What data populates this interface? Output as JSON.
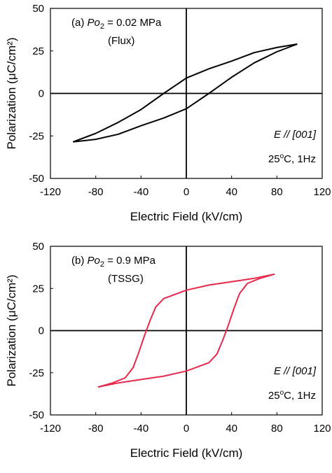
{
  "chart_data": [
    {
      "type": "line",
      "panel_label": "(a)",
      "annotations": {
        "condition_prefix": "(a) ",
        "condition_var": "Po",
        "condition_sub": "2",
        "condition_value": " = 0.02 MPa",
        "method": "(Flux)",
        "field_direction": "E // [001]",
        "temp_prefix": "25",
        "temp_sup": "o",
        "temp_suffix": "C, 1Hz"
      },
      "xlabel": "Electric Field (kV/cm)",
      "ylabel": "Polarization (μC/cm²)",
      "xlim": [
        -120,
        120
      ],
      "ylim": [
        -50,
        50
      ],
      "xticks": [
        "-120",
        "-80",
        "-40",
        "0",
        "40",
        "80",
        "120"
      ],
      "yticks": [
        "50",
        "25",
        "0",
        "-25",
        "-50"
      ],
      "line_color": "#000000",
      "series": [
        {
          "upper_branch": {
            "x": [
              98,
              80,
              60,
              40,
              20,
              0,
              -20,
              -40,
              -60,
              -80,
              -100
            ],
            "y": [
              29,
              27,
              24,
              19,
              14.5,
              9,
              0,
              -9.5,
              -17,
              -23.5,
              -28.5
            ]
          },
          "lower_branch": {
            "x": [
              -100,
              -80,
              -60,
              -40,
              -20,
              0,
              20,
              40,
              60,
              80,
              98
            ],
            "y": [
              -28.5,
              -27,
              -24,
              -19,
              -14.5,
              -9,
              0,
              9.5,
              18,
              24.5,
              29
            ]
          }
        }
      ]
    },
    {
      "type": "line",
      "panel_label": "(b)",
      "annotations": {
        "condition_prefix": "(b) ",
        "condition_var": "Po",
        "condition_sub": "2",
        "condition_value": " = 0.9 MPa",
        "method": "(TSSG)",
        "field_direction": "E // [001]",
        "temp_prefix": "25",
        "temp_sup": "o",
        "temp_suffix": "C, 1Hz"
      },
      "xlabel": "Electric Field (kV/cm)",
      "ylabel": "Polarization (μC/cm²)",
      "xlim": [
        -120,
        120
      ],
      "ylim": [
        -50,
        50
      ],
      "xticks": [
        "-120",
        "-80",
        "-40",
        "0",
        "40",
        "80",
        "120"
      ],
      "yticks": [
        "50",
        "25",
        "0",
        "-25",
        "-50"
      ],
      "line_color": "#e8284a",
      "series": [
        {
          "upper_branch": {
            "x": [
              78,
              60,
              40,
              20,
              0,
              -20,
              -27,
              -32,
              -37,
              -42,
              -47,
              -54,
              -65,
              -78
            ],
            "y": [
              33.5,
              31,
              29,
              27,
              24,
              19,
              14,
              6,
              -3,
              -13,
              -22,
              -28,
              -31,
              -33.5
            ]
          },
          "lower_branch": {
            "x": [
              -78,
              -60,
              -40,
              -20,
              0,
              20,
              27,
              32,
              37,
              42,
              47,
              54,
              65,
              78
            ],
            "y": [
              -33.5,
              -31,
              -29,
              -27,
              -24,
              -19,
              -14,
              -6,
              3,
              13,
              22,
              28,
              31,
              33.5
            ]
          }
        }
      ]
    }
  ]
}
